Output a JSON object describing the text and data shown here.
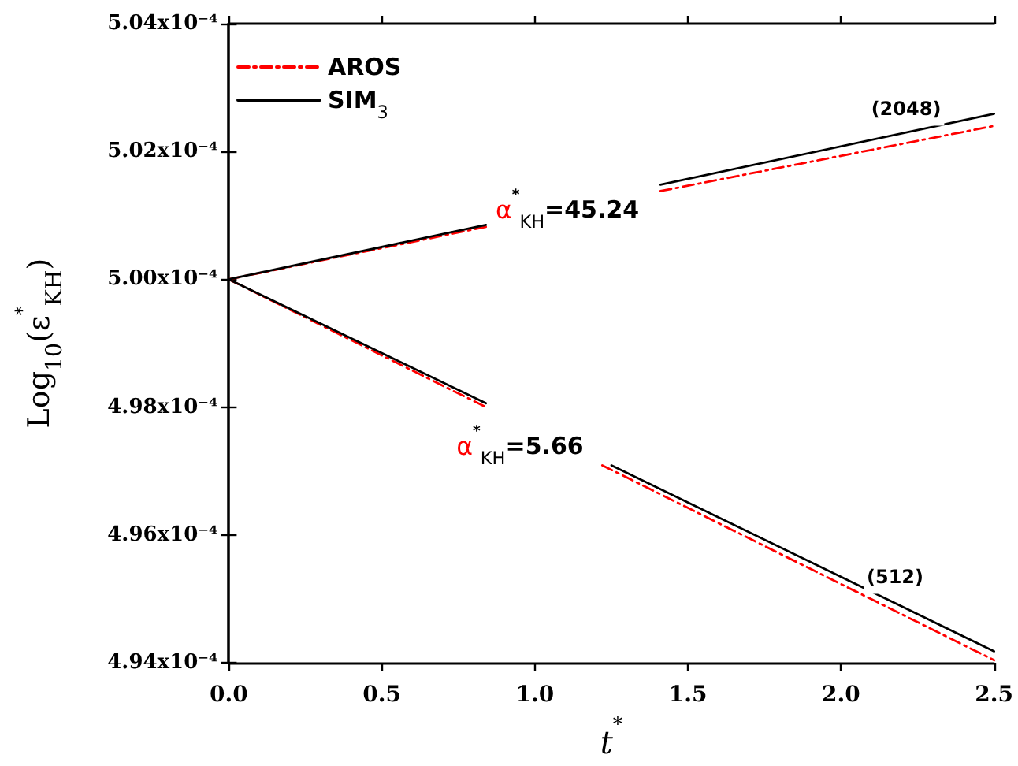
{
  "chart_data": {
    "type": "line",
    "xlabel": "t$^{*}$",
    "ylabel": "Log$_{10}$(ε$^{*}$$_{KH}$)",
    "xlim": [
      0,
      2.5
    ],
    "xticks": [
      {
        "value": 0,
        "label": "0.0"
      },
      0.5,
      {
        "value": 1,
        "label": "1.0"
      },
      1.5,
      {
        "value": 2,
        "label": "2.0"
      },
      2.5
    ],
    "ylim": [
      0.000494,
      0.000504
    ],
    "yticks": [
      {
        "value": 0.000494,
        "label": "4.94x10⁻⁴"
      },
      {
        "value": 0.000496,
        "label": "4.96x10⁻⁴"
      },
      {
        "value": 0.000498,
        "label": "4.98x10⁻⁴"
      },
      {
        "value": 0.0005,
        "label": "5.00x10⁻⁴"
      },
      {
        "value": 0.000502,
        "label": "5.02x10⁻⁴"
      },
      {
        "value": 0.000504,
        "label": "5.04x10⁻⁴"
      }
    ],
    "grid": false,
    "legend": "top left",
    "marker": "none",
    "series": [
      {
        "name": "AROS",
        "color": "#ff0000",
        "line_style": "dashed",
        "x": [
          0,
          0.84,
          1.1,
          1.41,
          2.5
        ],
        "values": [
          0.0005,
          0.00050082,
          null,
          0.00050138,
          0.0005024
        ]
      },
      {
        "color": "#ff0000",
        "line_style": "dashed",
        "x": [
          0,
          0.84,
          1.0,
          1.22,
          2.5
        ],
        "values": [
          0.0005,
          0.000498,
          null,
          0.00049709,
          0.00049404
        ]
      },
      {
        "name": "SIM$_{3}$",
        "color": "#000000",
        "line_style": "solid",
        "x": [
          0,
          0.84,
          1.1,
          1.41,
          2.5
        ],
        "values": [
          0.0005,
          0.00050085,
          null,
          0.00050148,
          0.00050259
        ]
      },
      {
        "color": "#000000",
        "line_style": "solid",
        "x": [
          0,
          0.84,
          1.0,
          1.25,
          2.5
        ],
        "values": [
          0.0005,
          0.00049806,
          null,
          0.00049709,
          0.00049418
        ]
      }
    ],
    "annotations": [
      "α$^{*}$$_{KH}$=45.24",
      "α$^{*}$$_{KH}$=5.66",
      "(2048)",
      "(512)"
    ]
  }
}
